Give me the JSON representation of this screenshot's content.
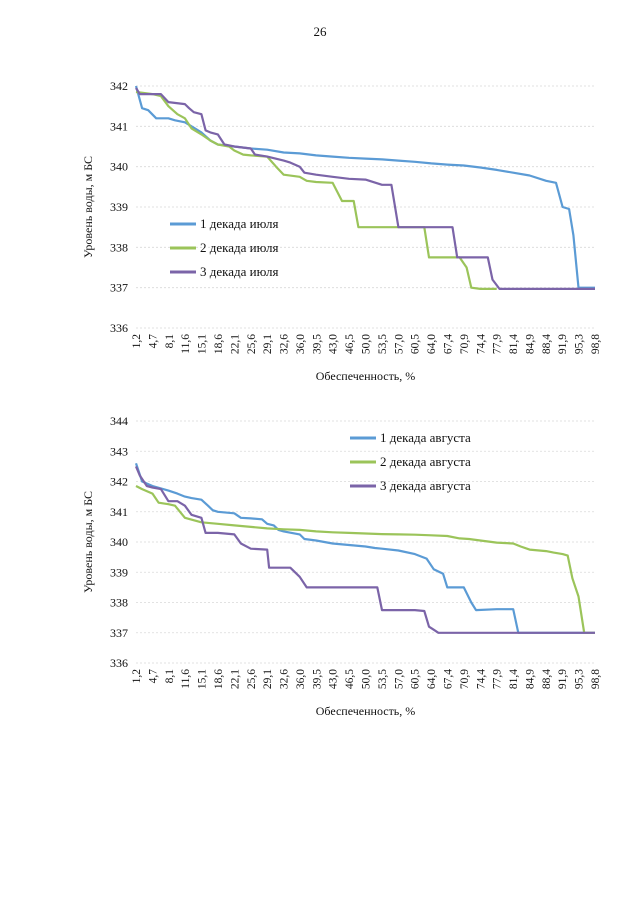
{
  "page_number": "26",
  "colors": {
    "series1": "#5b9bd5",
    "series2": "#9bc45a",
    "series3": "#7b64a8",
    "grid": "#d9d9d9"
  },
  "chart_data": [
    {
      "type": "line",
      "title": "",
      "xlabel": "Обеспеченность, %",
      "ylabel": "Уровень воды, м БС",
      "ylim": [
        336,
        342
      ],
      "yticks": [
        336,
        337,
        338,
        339,
        340,
        341,
        342
      ],
      "grid": true,
      "legend_position": "left",
      "x_tick_labels": [
        "1,2",
        "4,7",
        "8,1",
        "11,6",
        "15,1",
        "18,6",
        "22,1",
        "25,6",
        "29,1",
        "32,6",
        "36,0",
        "39,5",
        "43,0",
        "46,5",
        "50,0",
        "53,5",
        "57,0",
        "60,5",
        "64,0",
        "67,4",
        "70,9",
        "74,4",
        "77,9",
        "81,4",
        "84,9",
        "88,4",
        "91,9",
        "95,3",
        "98,8"
      ],
      "xlim": [
        1.2,
        98.8
      ],
      "series": [
        {
          "name": "1 декада июля",
          "color": "#5b9bd5",
          "points": [
            [
              1.2,
              342.0
            ],
            [
              2.5,
              341.45
            ],
            [
              3.8,
              341.4
            ],
            [
              5.5,
              341.2
            ],
            [
              8.1,
              341.2
            ],
            [
              9.5,
              341.15
            ],
            [
              11.6,
              341.1
            ],
            [
              13.0,
              341.0
            ],
            [
              15.1,
              340.85
            ],
            [
              17.0,
              340.65
            ],
            [
              18.6,
              340.55
            ],
            [
              22.1,
              340.5
            ],
            [
              25.6,
              340.45
            ],
            [
              29.1,
              340.42
            ],
            [
              32.6,
              340.35
            ],
            [
              36.0,
              340.33
            ],
            [
              39.5,
              340.28
            ],
            [
              43.0,
              340.25
            ],
            [
              46.5,
              340.22
            ],
            [
              50.0,
              340.2
            ],
            [
              53.5,
              340.18
            ],
            [
              57.0,
              340.15
            ],
            [
              60.5,
              340.12
            ],
            [
              64.0,
              340.08
            ],
            [
              67.4,
              340.05
            ],
            [
              70.9,
              340.03
            ],
            [
              74.4,
              339.98
            ],
            [
              77.9,
              339.92
            ],
            [
              81.4,
              339.85
            ],
            [
              84.9,
              339.78
            ],
            [
              88.4,
              339.65
            ],
            [
              90.5,
              339.6
            ],
            [
              91.9,
              339.0
            ],
            [
              93.3,
              338.95
            ],
            [
              94.2,
              338.3
            ],
            [
              95.3,
              337.0
            ],
            [
              98.8,
              337.0
            ]
          ]
        },
        {
          "name": "2 декада июля",
          "color": "#9bc45a",
          "points": [
            [
              1.2,
              341.85
            ],
            [
              4.7,
              341.8
            ],
            [
              6.5,
              341.75
            ],
            [
              8.1,
              341.5
            ],
            [
              10.0,
              341.3
            ],
            [
              11.6,
              341.2
            ],
            [
              13.0,
              340.95
            ],
            [
              15.1,
              340.8
            ],
            [
              17.0,
              340.65
            ],
            [
              18.6,
              340.55
            ],
            [
              21.0,
              340.5
            ],
            [
              22.1,
              340.4
            ],
            [
              24.0,
              340.3
            ],
            [
              25.6,
              340.28
            ],
            [
              29.1,
              340.25
            ],
            [
              31.0,
              340.0
            ],
            [
              32.6,
              339.8
            ],
            [
              36.0,
              339.75
            ],
            [
              37.5,
              339.65
            ],
            [
              39.5,
              339.62
            ],
            [
              43.0,
              339.6
            ],
            [
              45.0,
              339.15
            ],
            [
              47.5,
              339.15
            ],
            [
              48.5,
              338.5
            ],
            [
              50.0,
              338.5
            ],
            [
              57.0,
              338.5
            ],
            [
              60.5,
              338.5
            ],
            [
              62.5,
              338.5
            ],
            [
              63.5,
              337.75
            ],
            [
              67.4,
              337.75
            ],
            [
              70.0,
              337.75
            ],
            [
              71.5,
              337.5
            ],
            [
              72.5,
              337.0
            ],
            [
              74.4,
              336.97
            ],
            [
              77.9,
              336.97
            ]
          ]
        },
        {
          "name": "3 декада июля",
          "color": "#7b64a8",
          "points": [
            [
              1.2,
              341.95
            ],
            [
              2.0,
              341.8
            ],
            [
              4.7,
              341.8
            ],
            [
              6.5,
              341.8
            ],
            [
              8.1,
              341.6
            ],
            [
              11.6,
              341.55
            ],
            [
              12.5,
              341.45
            ],
            [
              13.5,
              341.35
            ],
            [
              15.1,
              341.3
            ],
            [
              16.0,
              340.9
            ],
            [
              17.0,
              340.85
            ],
            [
              18.6,
              340.8
            ],
            [
              20.0,
              340.55
            ],
            [
              22.1,
              340.5
            ],
            [
              25.6,
              340.45
            ],
            [
              26.5,
              340.3
            ],
            [
              29.1,
              340.25
            ],
            [
              32.6,
              340.15
            ],
            [
              34.0,
              340.1
            ],
            [
              36.0,
              340.0
            ],
            [
              37.0,
              339.85
            ],
            [
              39.5,
              339.8
            ],
            [
              43.0,
              339.75
            ],
            [
              46.5,
              339.7
            ],
            [
              50.0,
              339.68
            ],
            [
              53.5,
              339.55
            ],
            [
              55.5,
              339.55
            ],
            [
              57.0,
              338.5
            ],
            [
              60.5,
              338.5
            ],
            [
              64.0,
              338.5
            ],
            [
              67.4,
              338.5
            ],
            [
              68.5,
              338.5
            ],
            [
              69.5,
              337.75
            ],
            [
              70.9,
              337.75
            ],
            [
              74.4,
              337.75
            ],
            [
              76.0,
              337.75
            ],
            [
              77.0,
              337.2
            ],
            [
              78.5,
              336.97
            ],
            [
              81.4,
              336.97
            ],
            [
              84.9,
              336.97
            ],
            [
              88.4,
              336.97
            ],
            [
              91.9,
              336.97
            ],
            [
              95.3,
              336.97
            ],
            [
              98.8,
              336.97
            ]
          ]
        }
      ]
    },
    {
      "type": "line",
      "title": "",
      "xlabel": "Обеспеченность, %",
      "ylabel": "Уровень воды, м БС",
      "ylim": [
        336,
        344
      ],
      "yticks": [
        336,
        337,
        338,
        339,
        340,
        341,
        342,
        343,
        344
      ],
      "grid": true,
      "legend_position": "top-right",
      "x_tick_labels": [
        "1,2",
        "4,7",
        "8,1",
        "11,6",
        "15,1",
        "18,6",
        "22,1",
        "25,6",
        "29,1",
        "32,6",
        "36,0",
        "39,5",
        "43,0",
        "46,5",
        "50,0",
        "53,5",
        "57,0",
        "60,5",
        "64,0",
        "67,4",
        "70,9",
        "74,4",
        "77,9",
        "81,4",
        "84,9",
        "88,4",
        "91,9",
        "95,3",
        "98,8"
      ],
      "xlim": [
        1.2,
        98.8
      ],
      "series": [
        {
          "name": "1 декада августа",
          "color": "#5b9bd5",
          "points": [
            [
              1.2,
              342.6
            ],
            [
              2.5,
              342.0
            ],
            [
              4.7,
              341.85
            ],
            [
              8.1,
              341.7
            ],
            [
              10.0,
              341.6
            ],
            [
              11.6,
              341.5
            ],
            [
              13.0,
              341.45
            ],
            [
              15.1,
              341.4
            ],
            [
              16.5,
              341.2
            ],
            [
              17.5,
              341.05
            ],
            [
              18.6,
              341.0
            ],
            [
              22.1,
              340.95
            ],
            [
              23.5,
              340.8
            ],
            [
              25.6,
              340.78
            ],
            [
              28.0,
              340.75
            ],
            [
              29.1,
              340.6
            ],
            [
              30.5,
              340.55
            ],
            [
              31.5,
              340.4
            ],
            [
              32.6,
              340.35
            ],
            [
              36.0,
              340.25
            ],
            [
              37.0,
              340.1
            ],
            [
              39.5,
              340.05
            ],
            [
              43.0,
              339.95
            ],
            [
              46.5,
              339.9
            ],
            [
              50.0,
              339.85
            ],
            [
              52.0,
              339.8
            ],
            [
              53.5,
              339.78
            ],
            [
              57.0,
              339.72
            ],
            [
              60.5,
              339.6
            ],
            [
              63.0,
              339.45
            ],
            [
              64.5,
              339.1
            ],
            [
              66.5,
              338.95
            ],
            [
              67.4,
              338.5
            ],
            [
              70.9,
              338.5
            ],
            [
              72.5,
              338.0
            ],
            [
              73.5,
              337.75
            ],
            [
              77.9,
              337.78
            ],
            [
              81.4,
              337.78
            ],
            [
              82.5,
              337.0
            ],
            [
              84.9,
              337.0
            ],
            [
              88.4,
              337.0
            ],
            [
              91.9,
              337.0
            ],
            [
              95.3,
              337.0
            ],
            [
              98.8,
              337.0
            ]
          ]
        },
        {
          "name": "2 декада августа",
          "color": "#9bc45a",
          "points": [
            [
              1.2,
              341.85
            ],
            [
              2.5,
              341.75
            ],
            [
              4.7,
              341.6
            ],
            [
              6.0,
              341.3
            ],
            [
              8.1,
              341.25
            ],
            [
              9.5,
              341.2
            ],
            [
              11.6,
              340.8
            ],
            [
              15.1,
              340.65
            ],
            [
              18.6,
              340.6
            ],
            [
              22.1,
              340.55
            ],
            [
              25.6,
              340.5
            ],
            [
              29.1,
              340.45
            ],
            [
              32.6,
              340.42
            ],
            [
              36.0,
              340.4
            ],
            [
              39.5,
              340.35
            ],
            [
              43.0,
              340.32
            ],
            [
              46.5,
              340.3
            ],
            [
              50.0,
              340.28
            ],
            [
              53.5,
              340.26
            ],
            [
              57.0,
              340.25
            ],
            [
              60.5,
              340.24
            ],
            [
              64.0,
              340.22
            ],
            [
              67.4,
              340.2
            ],
            [
              70.0,
              340.12
            ],
            [
              72.0,
              340.1
            ],
            [
              74.4,
              340.05
            ],
            [
              77.9,
              339.98
            ],
            [
              81.4,
              339.95
            ],
            [
              83.0,
              339.85
            ],
            [
              84.9,
              339.75
            ],
            [
              88.4,
              339.7
            ],
            [
              90.0,
              339.65
            ],
            [
              91.9,
              339.6
            ],
            [
              93.0,
              339.55
            ],
            [
              94.0,
              338.8
            ],
            [
              95.3,
              338.2
            ],
            [
              96.5,
              337.0
            ],
            [
              98.8,
              337.0
            ]
          ]
        },
        {
          "name": "3 декада августа",
          "color": "#7b64a8",
          "points": [
            [
              1.2,
              342.5
            ],
            [
              2.0,
              342.2
            ],
            [
              3.5,
              341.85
            ],
            [
              4.7,
              341.8
            ],
            [
              6.5,
              341.75
            ],
            [
              8.1,
              341.35
            ],
            [
              10.0,
              341.35
            ],
            [
              11.6,
              341.2
            ],
            [
              13.0,
              340.9
            ],
            [
              15.1,
              340.8
            ],
            [
              16.0,
              340.3
            ],
            [
              18.6,
              340.3
            ],
            [
              22.1,
              340.25
            ],
            [
              23.5,
              339.95
            ],
            [
              25.6,
              339.78
            ],
            [
              29.1,
              339.75
            ],
            [
              29.5,
              339.15
            ],
            [
              32.6,
              339.15
            ],
            [
              34.0,
              339.15
            ],
            [
              36.0,
              338.85
            ],
            [
              37.5,
              338.5
            ],
            [
              39.5,
              338.5
            ],
            [
              43.0,
              338.5
            ],
            [
              46.5,
              338.5
            ],
            [
              50.0,
              338.5
            ],
            [
              52.5,
              338.5
            ],
            [
              53.5,
              337.75
            ],
            [
              57.0,
              337.75
            ],
            [
              60.5,
              337.75
            ],
            [
              62.5,
              337.72
            ],
            [
              63.5,
              337.2
            ],
            [
              64.5,
              337.1
            ],
            [
              65.5,
              337.0
            ],
            [
              67.4,
              337.0
            ],
            [
              70.9,
              337.0
            ],
            [
              74.4,
              337.0
            ],
            [
              77.9,
              337.0
            ],
            [
              81.4,
              337.0
            ],
            [
              84.9,
              337.0
            ],
            [
              88.4,
              337.0
            ],
            [
              91.9,
              337.0
            ],
            [
              95.3,
              337.0
            ],
            [
              98.8,
              337.0
            ]
          ]
        }
      ]
    }
  ]
}
